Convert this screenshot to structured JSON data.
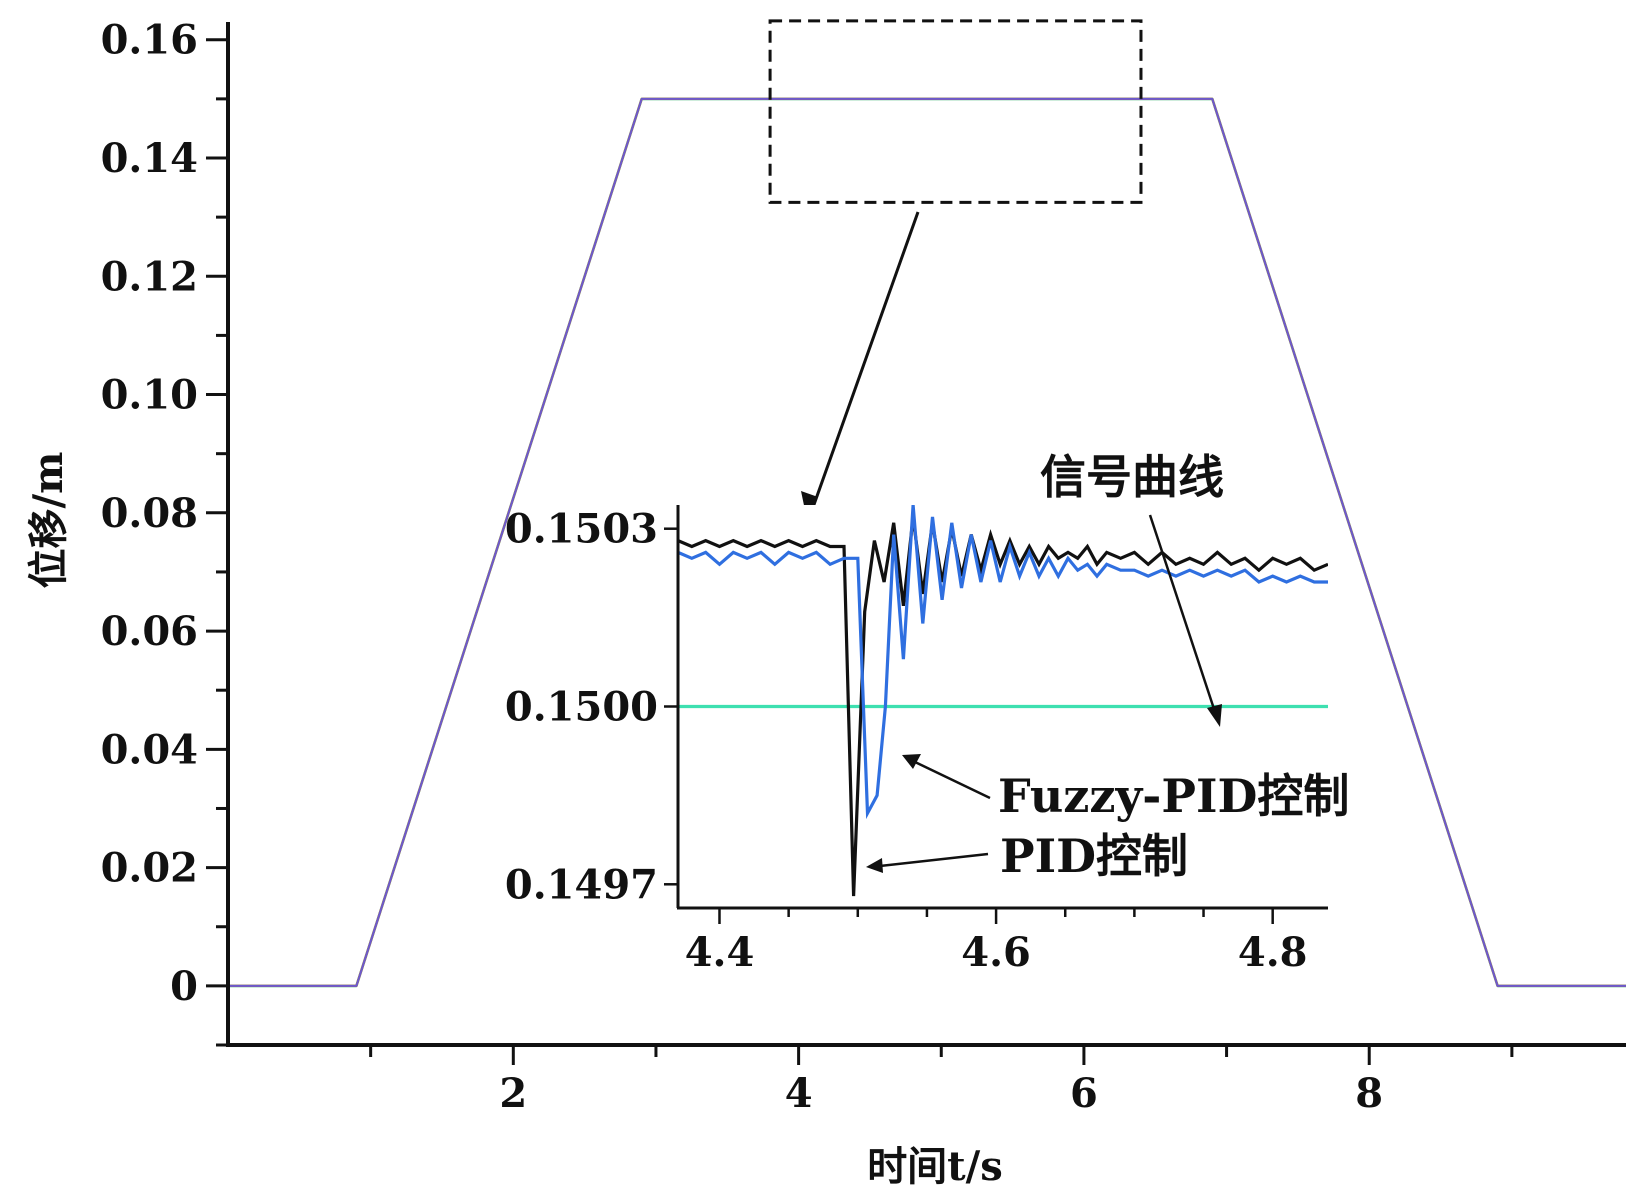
{
  "chart_data": [
    {
      "type": "line",
      "xlabel": "时间t/s",
      "ylabel": "位移/m",
      "xlim": [
        0,
        9.8
      ],
      "ylim": [
        -0.01,
        0.163
      ],
      "x_ticks": [
        2,
        4,
        6,
        8
      ],
      "y_ticks": [
        0,
        0.02,
        0.04,
        0.06,
        0.08,
        0.1,
        0.12,
        0.14,
        0.16
      ],
      "x_tick_labels": [
        "2",
        "4",
        "6",
        "8"
      ],
      "y_tick_labels": [
        "0",
        "0.02",
        "0.04",
        "0.06",
        "0.08",
        "0.10",
        "0.12",
        "0.14",
        "0.16"
      ],
      "series": [
        {
          "name": "信号曲线",
          "color": "#3cb371",
          "x": [
            0,
            0.9,
            2.9,
            6.9,
            8.9,
            9.8
          ],
          "y": [
            0,
            0,
            0.15,
            0.15,
            0,
            0
          ]
        },
        {
          "name": "PID控制",
          "color": "#e25a2c",
          "x": [
            0,
            0.9,
            2.9,
            6.9,
            8.9,
            9.8
          ],
          "y": [
            0,
            0,
            0.15,
            0.15,
            0,
            0
          ]
        },
        {
          "name": "Fuzzy-PID控制",
          "color": "#6a5acd",
          "x": [
            0,
            0.9,
            2.9,
            6.9,
            8.9,
            9.8
          ],
          "y": [
            0,
            0,
            0.15,
            0.15,
            0,
            0
          ]
        }
      ],
      "zoom_region": {
        "x": [
          3.8,
          6.4
        ],
        "y": [
          0.1325,
          0.1632
        ]
      }
    },
    {
      "type": "line",
      "inset_of": 0,
      "xlim": [
        4.37,
        4.84
      ],
      "ylim": [
        0.14966,
        0.15034
      ],
      "x_ticks": [
        4.4,
        4.6,
        4.8
      ],
      "y_ticks": [
        0.1497,
        0.15,
        0.1503
      ],
      "x_tick_labels": [
        "4.4",
        "4.6",
        "4.8"
      ],
      "y_tick_labels": [
        "0.1497",
        "0.1500",
        "0.1503"
      ],
      "series": [
        {
          "name": "信号曲线",
          "color": "#3ee0b0",
          "x": [
            4.37,
            4.84
          ],
          "y": [
            0.15,
            0.15
          ]
        },
        {
          "name": "PID控制",
          "color": "#111111",
          "x": [
            4.37,
            4.38,
            4.39,
            4.4,
            4.41,
            4.42,
            4.43,
            4.44,
            4.45,
            4.46,
            4.47,
            4.48,
            4.49,
            4.497,
            4.505,
            4.512,
            4.519,
            4.526,
            4.533,
            4.54,
            4.547,
            4.554,
            4.561,
            4.568,
            4.575,
            4.582,
            4.589,
            4.596,
            4.603,
            4.61,
            4.617,
            4.624,
            4.631,
            4.638,
            4.645,
            4.652,
            4.659,
            4.666,
            4.673,
            4.68,
            4.69,
            4.7,
            4.71,
            4.72,
            4.73,
            4.74,
            4.75,
            4.76,
            4.77,
            4.78,
            4.79,
            4.8,
            4.81,
            4.82,
            4.83,
            4.84
          ],
          "y": [
            0.15028,
            0.15027,
            0.15028,
            0.15027,
            0.15028,
            0.15027,
            0.15028,
            0.15027,
            0.15028,
            0.15027,
            0.15028,
            0.15027,
            0.15027,
            0.14968,
            0.15016,
            0.15028,
            0.15021,
            0.15031,
            0.15017,
            0.15032,
            0.15019,
            0.15031,
            0.15021,
            0.1503,
            0.15022,
            0.15029,
            0.15023,
            0.15029,
            0.15024,
            0.15028,
            0.15024,
            0.15027,
            0.15024,
            0.15027,
            0.15025,
            0.15026,
            0.15025,
            0.15027,
            0.15024,
            0.15026,
            0.15025,
            0.15026,
            0.15024,
            0.15026,
            0.15024,
            0.15025,
            0.15024,
            0.15026,
            0.15024,
            0.15025,
            0.15023,
            0.15025,
            0.15024,
            0.15025,
            0.15023,
            0.15024
          ]
        },
        {
          "name": "Fuzzy-PID控制",
          "color": "#2f6fe0",
          "x": [
            4.37,
            4.38,
            4.39,
            4.4,
            4.41,
            4.42,
            4.43,
            4.44,
            4.45,
            4.46,
            4.47,
            4.48,
            4.49,
            4.5,
            4.507,
            4.514,
            4.52,
            4.526,
            4.533,
            4.54,
            4.547,
            4.554,
            4.561,
            4.568,
            4.575,
            4.582,
            4.589,
            4.596,
            4.603,
            4.61,
            4.617,
            4.624,
            4.631,
            4.638,
            4.645,
            4.652,
            4.659,
            4.666,
            4.673,
            4.68,
            4.69,
            4.7,
            4.71,
            4.72,
            4.73,
            4.74,
            4.75,
            4.76,
            4.77,
            4.78,
            4.79,
            4.8,
            4.81,
            4.82,
            4.83,
            4.84
          ],
          "y": [
            0.15026,
            0.15025,
            0.15026,
            0.15024,
            0.15026,
            0.15025,
            0.15026,
            0.15024,
            0.15026,
            0.15025,
            0.15026,
            0.15024,
            0.15025,
            0.15025,
            0.14982,
            0.14985,
            0.15,
            0.15029,
            0.15008,
            0.15034,
            0.15014,
            0.15032,
            0.15018,
            0.15031,
            0.1502,
            0.15029,
            0.15021,
            0.15028,
            0.15021,
            0.15027,
            0.15022,
            0.15026,
            0.15022,
            0.15025,
            0.15022,
            0.15025,
            0.15023,
            0.15024,
            0.15022,
            0.15024,
            0.15023,
            0.15023,
            0.15022,
            0.15023,
            0.15022,
            0.15023,
            0.15022,
            0.15023,
            0.15022,
            0.15023,
            0.15021,
            0.15022,
            0.15021,
            0.15022,
            0.15021,
            0.15021
          ]
        }
      ]
    }
  ],
  "annotations": {
    "signal_label": "信号曲线",
    "fuzzy_label": "Fuzzy-PID控制",
    "pid_label": "PID控制"
  }
}
